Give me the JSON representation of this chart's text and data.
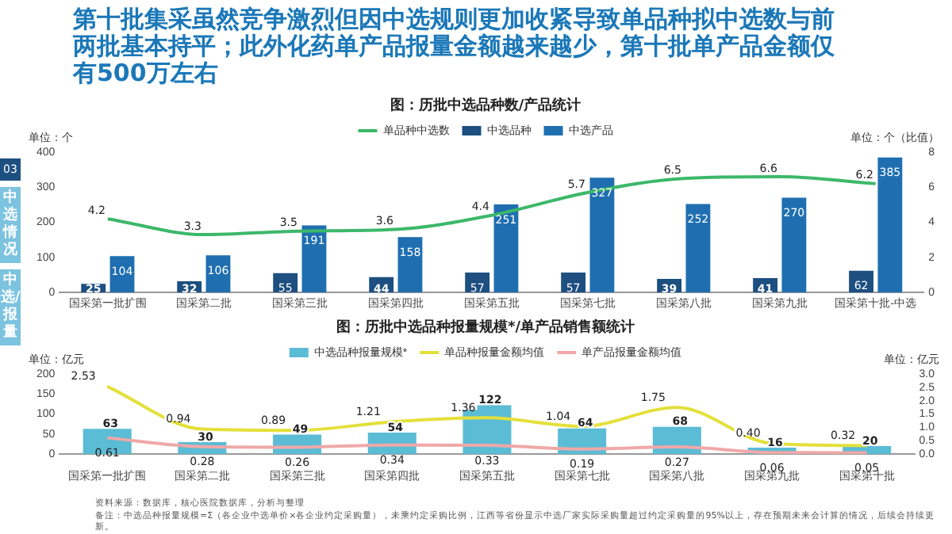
{
  "chart_data": [
    {
      "type": "bar",
      "title": "图：历批中选品种数/产品统计",
      "annotations": [
        "第十批集采虽然竞争激烈但因中选规则更加收紧导致单品种拟中选数与前两批基本持平；此外化药单产品报量金额越来越少，第十批单产品金额仅有500万左右",
        "03",
        "中选情况",
        "中选/报量"
      ],
      "categories": [
        "国采第一批扩围",
        "国采第二批",
        "国采第三批",
        "国采第四批",
        "国采第五批",
        "国采第七批",
        "国采第八批",
        "国采第九批",
        "国采第十批-中选"
      ],
      "series": [
        {
          "name": "单品种中选数",
          "type": "line",
          "axis": "y2",
          "color": "#3cb86a",
          "values": [
            4.2,
            3.3,
            3.5,
            3.6,
            4.4,
            5.7,
            6.5,
            6.6,
            6.2
          ]
        },
        {
          "name": "中选品种",
          "color": "#1d4f80",
          "values": [
            25,
            32,
            55,
            44,
            57,
            57,
            39,
            41,
            62
          ]
        },
        {
          "name": "中选产品",
          "color": "#1f6fb0",
          "values": [
            104,
            106,
            191,
            158,
            251,
            327,
            252,
            270,
            385
          ]
        }
      ],
      "ylabel": "单位：个",
      "y2label": "单位：个（比值）",
      "ylim": [
        0,
        400
      ],
      "yticks": [
        0,
        100,
        200,
        300,
        400
      ],
      "y2lim": [
        0,
        8
      ],
      "y2ticks": [
        0,
        2,
        4,
        6,
        8
      ],
      "data_labels": true,
      "legend": "top",
      "marker": "none"
    },
    {
      "type": "bar",
      "title": "图：历批中选品种报量规模*/单产品销售额统计",
      "annotations": [
        "资料来源：数据库，核心医院数据库，分析与整理",
        "备注：中选品种报量规模=Σ（各企业中选单价×各企业约定采购量），未乘约定采购比例，江西等省份显示中选厂家实际采购量超过约定采购量的95%以上，存在预期未来会计算的情况，后续会持续更新。"
      ],
      "categories": [
        "国采第一批扩围",
        "国采第二批",
        "国采第三批",
        "国采第四批",
        "国采第五批",
        "国采第七批",
        "国采第八批",
        "国采第九批",
        "国采第十批"
      ],
      "series": [
        {
          "name": "中选品种报量规模*",
          "color": "#5bbcd6",
          "values": [
            63,
            30,
            49,
            54,
            122,
            64,
            68,
            16,
            20
          ]
        },
        {
          "name": "单品种报量金额均值",
          "type": "line",
          "axis": "y2",
          "color": "#e3e03a",
          "values": [
            2.53,
            0.94,
            0.89,
            1.21,
            1.36,
            1.04,
            1.75,
            0.4,
            0.32
          ],
          "value_labels": [
            "2.53",
            "0.94",
            "0.89",
            "1.21",
            "1.36",
            "1.04",
            "1.75",
            "0.40",
            "0.32"
          ]
        },
        {
          "name": "单产品报量金额均值",
          "type": "line",
          "axis": "y2",
          "color": "#f0a8a8",
          "values": [
            0.61,
            0.28,
            0.26,
            0.34,
            0.33,
            0.19,
            0.27,
            0.06,
            0.05
          ]
        }
      ],
      "ylabel": "单位：亿元",
      "y2label": "单位：亿元",
      "ylim": [
        0,
        200
      ],
      "yticks": [
        0,
        50,
        100,
        150,
        200
      ],
      "y2lim": [
        0,
        3
      ],
      "y2ticks": [
        {
          "value": 0,
          "label": "0.0"
        },
        0.5,
        {
          "value": 1,
          "label": "1.0"
        },
        1.5,
        {
          "value": 2,
          "label": "2.0"
        },
        2.5,
        {
          "value": 3,
          "label": "3.0"
        }
      ],
      "data_labels": true,
      "legend": "top",
      "marker": "none"
    }
  ]
}
